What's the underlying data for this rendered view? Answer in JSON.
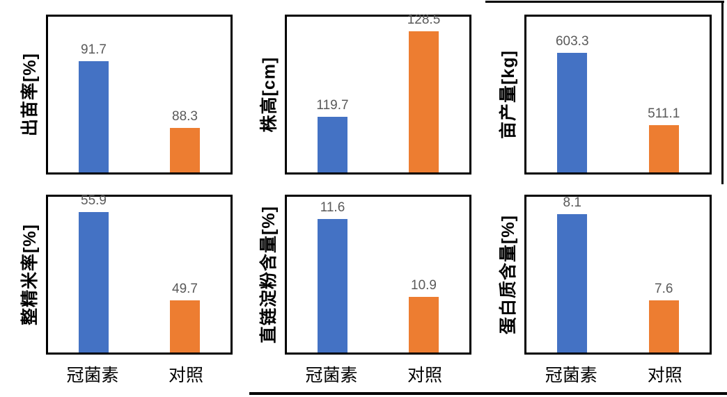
{
  "style": {
    "treatment_color": "#4472C4",
    "control_color": "#ED7D31",
    "data_label_color": "#595959",
    "axis_text_color": "#000000",
    "plot_border_color": "#000000",
    "background": "#FFFFFF"
  },
  "categories": [
    "冠菌素",
    "对照"
  ],
  "chart_data": [
    {
      "type": "bar",
      "title": "",
      "ylabel": "出苗率[%]",
      "xlabel": "",
      "categories": [
        "冠菌素",
        "对照"
      ],
      "values": [
        91.7,
        88.3
      ],
      "labels": [
        "91.7",
        "88.3"
      ],
      "ylim": [
        86,
        94
      ],
      "grid": false,
      "legend": "none",
      "x_labels_visible": false
    },
    {
      "type": "bar",
      "title": "",
      "ylabel": "株高[cm]",
      "xlabel": "",
      "categories": [
        "冠菌素",
        "对照"
      ],
      "values": [
        119.7,
        128.5
      ],
      "labels": [
        "119.7",
        "128.5"
      ],
      "ylim": [
        114,
        130
      ],
      "grid": false,
      "legend": "none",
      "x_labels_visible": false
    },
    {
      "type": "bar",
      "title": "",
      "ylabel": "亩产量[kg]",
      "xlabel": "",
      "categories": [
        "冠菌素",
        "对照"
      ],
      "values": [
        603.3,
        511.1
      ],
      "labels": [
        "603.3",
        "511.1"
      ],
      "ylim": [
        450,
        650
      ],
      "grid": false,
      "legend": "none",
      "x_labels_visible": false
    },
    {
      "type": "bar",
      "title": "",
      "ylabel": "整精米率[%]",
      "xlabel": "",
      "categories": [
        "冠菌素",
        "对照"
      ],
      "values": [
        55.9,
        49.7
      ],
      "labels": [
        "55.9",
        "49.7"
      ],
      "ylim": [
        46,
        57
      ],
      "grid": false,
      "legend": "none",
      "x_labels_visible": true
    },
    {
      "type": "bar",
      "title": "",
      "ylabel": "直链淀粉含量[%]",
      "xlabel": "",
      "categories": [
        "冠菌素",
        "对照"
      ],
      "values": [
        11.6,
        10.9
      ],
      "labels": [
        "11.6",
        "10.9"
      ],
      "ylim": [
        10.4,
        11.8
      ],
      "grid": false,
      "legend": "none",
      "x_labels_visible": true
    },
    {
      "type": "bar",
      "title": "",
      "ylabel": "蛋白质含量[%]",
      "xlabel": "",
      "categories": [
        "冠菌素",
        "对照"
      ],
      "values": [
        8.1,
        7.6
      ],
      "labels": [
        "8.1",
        "7.6"
      ],
      "ylim": [
        7.3,
        8.2
      ],
      "grid": false,
      "legend": "none",
      "x_labels_visible": true
    }
  ]
}
